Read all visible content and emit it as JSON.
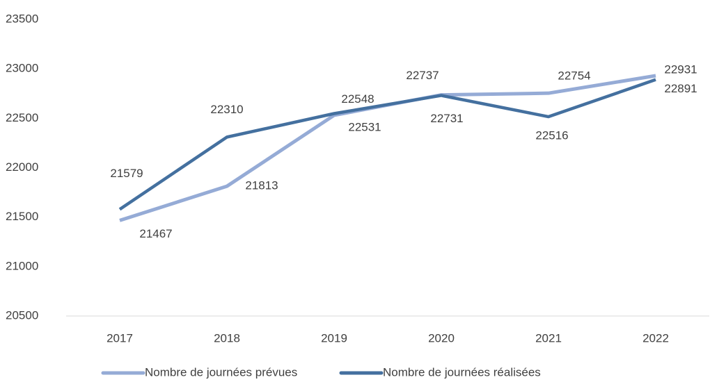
{
  "chart_data": {
    "type": "line",
    "categories": [
      "2017",
      "2018",
      "2019",
      "2020",
      "2021",
      "2022"
    ],
    "series": [
      {
        "name": "Nombre de journées prévues",
        "color": "#95abd6",
        "values": [
          21467,
          21813,
          22531,
          22737,
          22754,
          22931
        ]
      },
      {
        "name": "Nombre de journées réalisées",
        "color": "#44709f",
        "values": [
          21579,
          22310,
          22548,
          22731,
          22516,
          22891
        ]
      }
    ],
    "ylim": [
      20500,
      23500
    ],
    "yticks": [
      20500,
      21000,
      21500,
      22000,
      22500,
      23000,
      23500
    ],
    "grid": false,
    "legend": "bottom"
  }
}
